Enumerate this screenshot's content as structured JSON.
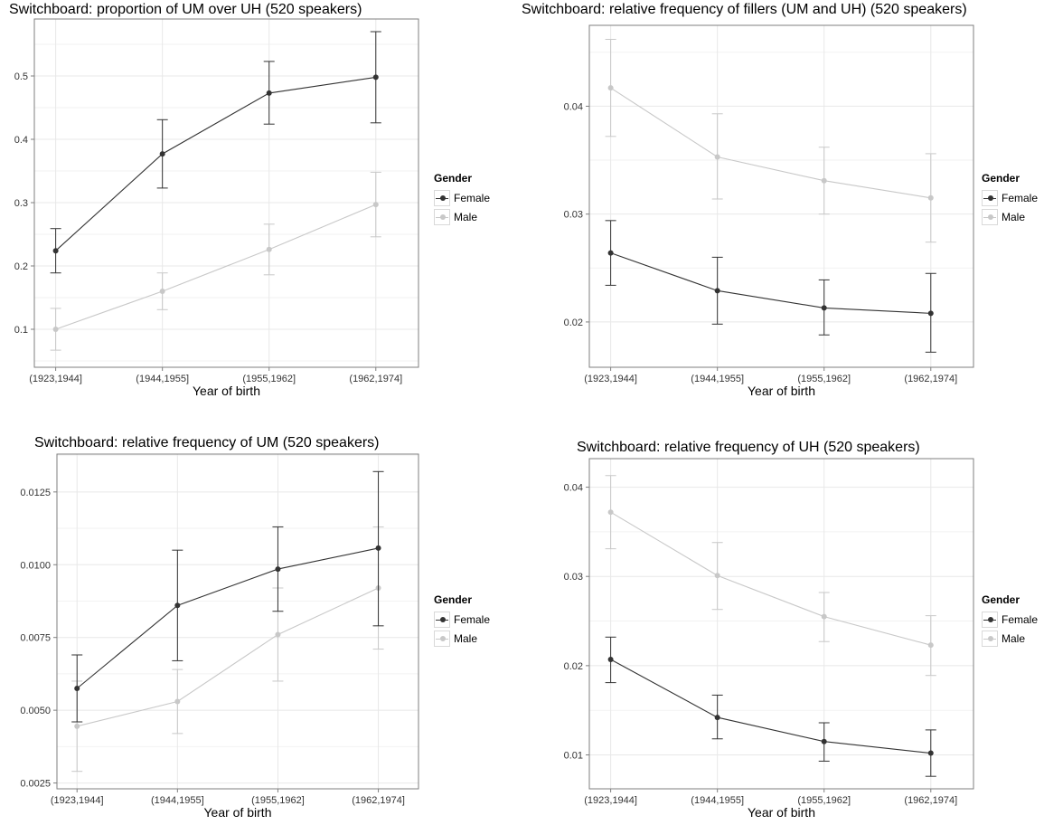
{
  "colors": {
    "Female": "#333333",
    "Male": "#c8c8c8",
    "grid": "#e8e8e8",
    "frame": "#7f7f7f"
  },
  "chart_data": [
    {
      "type": "line",
      "title": "Switchboard: proportion of UM over UH (520 speakers)",
      "xlabel": "Year of birth",
      "ylabel": "",
      "categories": [
        "(1923,1944]",
        "(1944,1955]",
        "(1955,1962]",
        "(1962,1974]"
      ],
      "ylim": [
        0.04,
        0.59
      ],
      "yticks": [
        0.1,
        0.2,
        0.3,
        0.4,
        0.5
      ],
      "ytick_labels": [
        "0.1",
        "0.2",
        "0.3",
        "0.4",
        "0.5"
      ],
      "grid": true,
      "legend": {
        "title": "Gender",
        "placement": "right"
      },
      "series": [
        {
          "name": "Female",
          "values": [
            0.224,
            0.377,
            0.473,
            0.498
          ],
          "lower": [
            0.189,
            0.323,
            0.424,
            0.426
          ],
          "upper": [
            0.259,
            0.431,
            0.523,
            0.57
          ]
        },
        {
          "name": "Male",
          "values": [
            0.1,
            0.16,
            0.226,
            0.297
          ],
          "lower": [
            0.067,
            0.131,
            0.186,
            0.246
          ],
          "upper": [
            0.133,
            0.189,
            0.266,
            0.348
          ]
        }
      ]
    },
    {
      "type": "line",
      "title": "Switchboard: relative frequency of fillers (UM and UH) (520 speakers)",
      "xlabel": "Year of birth",
      "ylabel": "",
      "categories": [
        "(1923,1944]",
        "(1944,1955]",
        "(1955,1962]",
        "(1962,1974]"
      ],
      "ylim": [
        0.0158,
        0.0475
      ],
      "yticks": [
        0.02,
        0.03,
        0.04
      ],
      "ytick_labels": [
        "0.02",
        "0.03",
        "0.04"
      ],
      "grid": true,
      "legend": {
        "title": "Gender",
        "placement": "right"
      },
      "series": [
        {
          "name": "Female",
          "values": [
            0.0264,
            0.0229,
            0.0213,
            0.0208
          ],
          "lower": [
            0.0234,
            0.0198,
            0.0188,
            0.0172
          ],
          "upper": [
            0.0294,
            0.026,
            0.0239,
            0.0245
          ]
        },
        {
          "name": "Male",
          "values": [
            0.0417,
            0.0353,
            0.0331,
            0.0315
          ],
          "lower": [
            0.0372,
            0.0314,
            0.03,
            0.0274
          ],
          "upper": [
            0.0462,
            0.0393,
            0.0362,
            0.0356
          ]
        }
      ]
    },
    {
      "type": "line",
      "title": "Switchboard: relative frequency of UM (520 speakers)",
      "xlabel": "Year of birth",
      "ylabel": "",
      "categories": [
        "(1923,1944]",
        "(1944,1955]",
        "(1955,1962]",
        "(1962,1974]"
      ],
      "ylim": [
        0.0023,
        0.0138
      ],
      "yticks": [
        0.0025,
        0.005,
        0.0075,
        0.01,
        0.0125
      ],
      "ytick_labels": [
        "0.0025",
        "0.0050",
        "0.0075",
        "0.0100",
        "0.0125"
      ],
      "grid": true,
      "legend": {
        "title": "Gender",
        "placement": "right"
      },
      "series": [
        {
          "name": "Female",
          "values": [
            0.00575,
            0.0086,
            0.00985,
            0.01057
          ],
          "lower": [
            0.0046,
            0.0067,
            0.0084,
            0.0079
          ],
          "upper": [
            0.0069,
            0.0105,
            0.0113,
            0.0132
          ]
        },
        {
          "name": "Male",
          "values": [
            0.00445,
            0.0053,
            0.0076,
            0.0092
          ],
          "lower": [
            0.0029,
            0.0042,
            0.006,
            0.0071
          ],
          "upper": [
            0.006,
            0.0064,
            0.0092,
            0.0113
          ]
        }
      ]
    },
    {
      "type": "line",
      "title": "Switchboard: relative frequency of UH (520 speakers)",
      "xlabel": "Year of birth",
      "ylabel": "",
      "categories": [
        "(1923,1944]",
        "(1944,1955]",
        "(1955,1962]",
        "(1962,1974]"
      ],
      "ylim": [
        0.0062,
        0.0432
      ],
      "yticks": [
        0.01,
        0.02,
        0.03,
        0.04
      ],
      "ytick_labels": [
        "0.01",
        "0.02",
        "0.03",
        "0.04"
      ],
      "grid": true,
      "legend": {
        "title": "Gender",
        "placement": "right"
      },
      "series": [
        {
          "name": "Female",
          "values": [
            0.0207,
            0.0142,
            0.0115,
            0.0102
          ],
          "lower": [
            0.0181,
            0.0118,
            0.0093,
            0.0076
          ],
          "upper": [
            0.0232,
            0.0167,
            0.0136,
            0.0128
          ]
        },
        {
          "name": "Male",
          "values": [
            0.0372,
            0.0301,
            0.0255,
            0.0223
          ],
          "lower": [
            0.0331,
            0.0263,
            0.0227,
            0.0189
          ],
          "upper": [
            0.0413,
            0.0338,
            0.0282,
            0.0256
          ]
        }
      ]
    }
  ]
}
